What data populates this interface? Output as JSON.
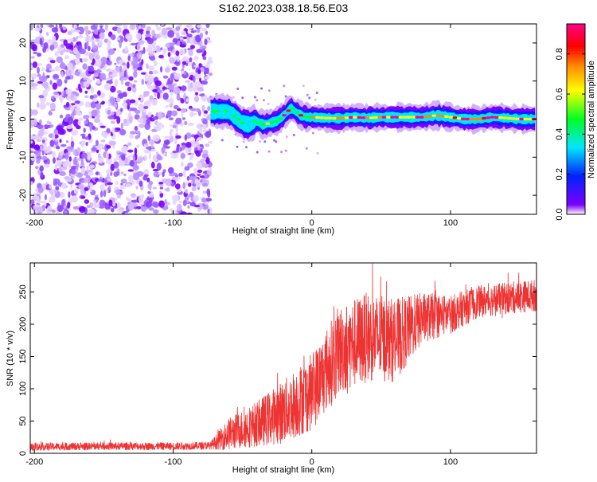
{
  "title": "S162.2023.038.18.56.E03",
  "chart_data": [
    {
      "type": "heatmap",
      "xlabel": "Height of straight line (km)",
      "ylabel": "Frequency (Hz)",
      "xlim": [
        -203,
        162
      ],
      "ylim": [
        -25,
        25
      ],
      "x_ticks": [
        -200,
        -100,
        0,
        100
      ],
      "y_ticks": [
        -20,
        -10,
        0,
        10,
        20
      ],
      "noise_region_x": [
        -203,
        -73
      ],
      "signal_band": {
        "x": [
          -73,
          -65,
          -60,
          -55,
          -50,
          -45,
          -40,
          -35,
          -30,
          -25,
          -20,
          -15,
          -12,
          -8,
          -4,
          0,
          10,
          20,
          30,
          40,
          50,
          60,
          70,
          80,
          90,
          100,
          110,
          120,
          130,
          140,
          150,
          162
        ],
        "center_hz": [
          2,
          2,
          2,
          0.5,
          -1,
          -1.5,
          -0.5,
          -1.5,
          -1,
          -0.5,
          1,
          3,
          2,
          1,
          0.5,
          0.5,
          0.3,
          0.2,
          0.5,
          0.3,
          0.5,
          0.5,
          0.5,
          0.5,
          1,
          0.5,
          0,
          0,
          0.5,
          0.3,
          0,
          0
        ]
      },
      "colorbar": {
        "label": "Normalized spectral amplitude",
        "range": [
          0,
          0.95
        ],
        "ticks": [
          0.0,
          0.2,
          0.4,
          0.6,
          0.8
        ],
        "tick_labels": [
          "0.0",
          "0.2",
          "0.4",
          "0.6",
          "0.8"
        ],
        "colors": [
          "#ffffff",
          "#7b00ff",
          "#0022ff",
          "#00e5ff",
          "#00ff22",
          "#ffff00",
          "#ff8800",
          "#ff0000",
          "#ff0088"
        ]
      }
    },
    {
      "type": "line",
      "xlabel": "Height of straight line (km)",
      "ylabel": "SNR (10 * v/v)",
      "xlim": [
        -203,
        162
      ],
      "ylim": [
        0,
        295
      ],
      "x_ticks": [
        -200,
        -100,
        0,
        100
      ],
      "y_ticks": [
        0,
        50,
        100,
        150,
        200,
        250
      ],
      "color": "#ee3333",
      "envelope": {
        "x": [
          -203,
          -150,
          -100,
          -73,
          -60,
          -40,
          -20,
          0,
          20,
          40,
          60,
          80,
          100,
          120,
          140,
          162
        ],
        "center": [
          10,
          11,
          11,
          12,
          30,
          45,
          65,
          95,
          160,
          180,
          175,
          210,
          215,
          235,
          240,
          245
        ],
        "spread": [
          6,
          6,
          6,
          6,
          25,
          35,
          50,
          60,
          70,
          70,
          65,
          40,
          30,
          25,
          25,
          25
        ]
      }
    }
  ]
}
